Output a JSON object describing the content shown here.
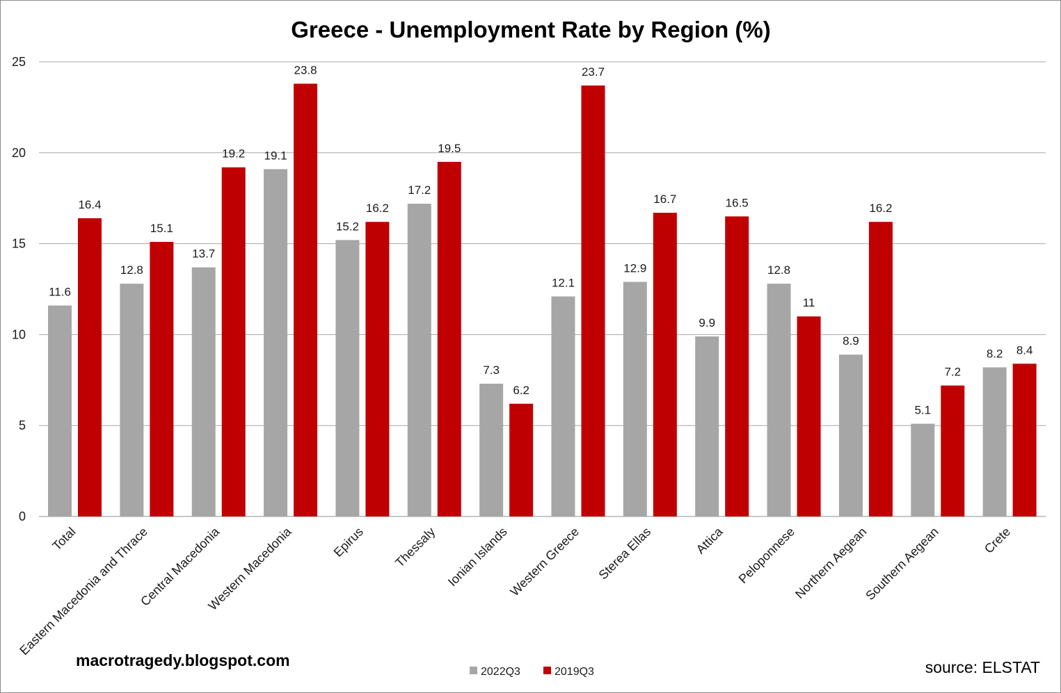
{
  "chart_data": {
    "type": "bar",
    "title": "Greece - Unemployment Rate by Region (%)",
    "categories": [
      "Total",
      "Eastern Macedonia and Thrace",
      "Central Macedonia",
      "Western Macedonia",
      "Epirus",
      "Thessaly",
      "Ionian Islands",
      "Western Greece",
      "Sterea Ellas",
      "Attica",
      "Peloponnese",
      "Northern Aegean",
      "Southern Aegean",
      "Crete"
    ],
    "series": [
      {
        "name": "2022Q3",
        "color": "#a6a6a6",
        "values": [
          11.6,
          12.8,
          13.7,
          19.1,
          15.2,
          17.2,
          7.3,
          12.1,
          12.9,
          9.9,
          12.8,
          8.9,
          5.1,
          8.2
        ]
      },
      {
        "name": "2019Q3",
        "color": "#c00000",
        "values": [
          16.4,
          15.1,
          19.2,
          23.8,
          16.2,
          19.5,
          6.2,
          23.7,
          16.7,
          16.5,
          11,
          16.2,
          7.2,
          8.4
        ]
      }
    ],
    "ylim": [
      0,
      25
    ],
    "yticks": [
      0,
      5,
      10,
      15,
      20,
      25
    ],
    "grid": true,
    "legend_position": "bottom",
    "xlabel": "",
    "ylabel": ""
  },
  "footer": {
    "watermark": "macrotragedy.blogspot.com",
    "source": "source: ELSTAT"
  }
}
